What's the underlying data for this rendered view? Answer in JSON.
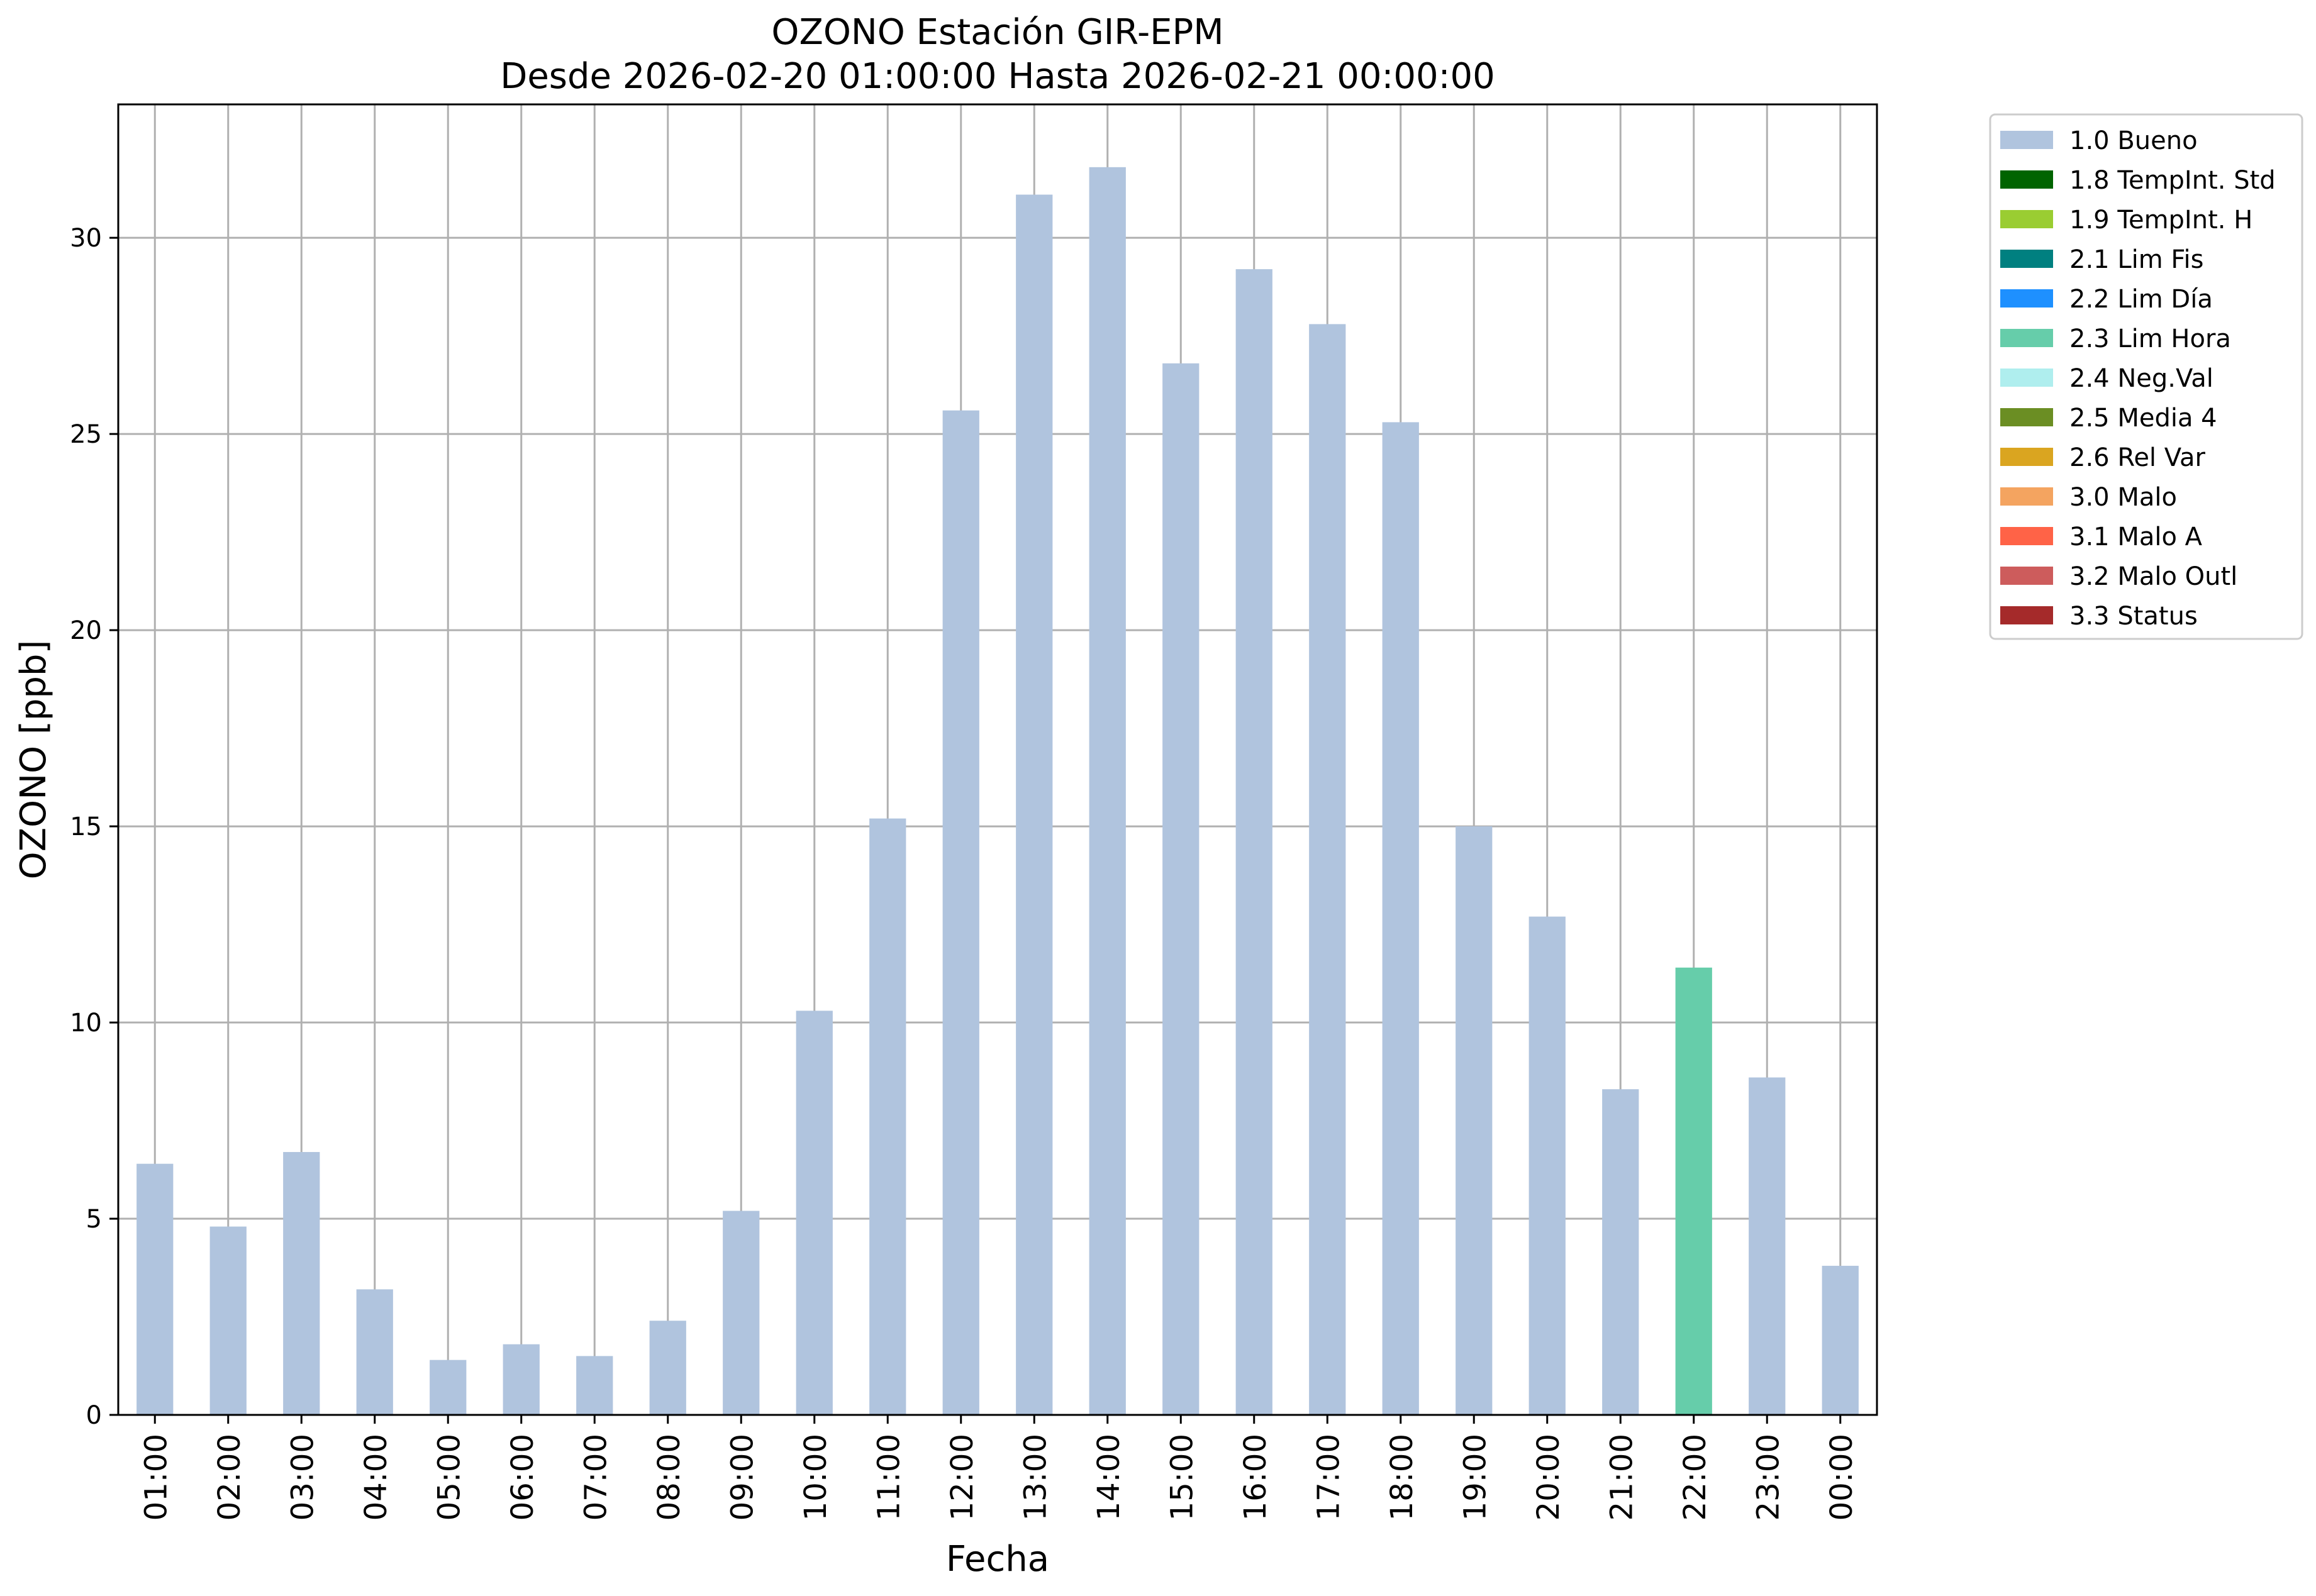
{
  "chart_data": {
    "type": "bar",
    "title": "OZONO Estación GIR-EPM",
    "subtitle": "Desde 2026-02-20 01:00:00 Hasta 2026-02-21 00:00:00",
    "xlabel": "Fecha",
    "ylabel": "OZONO [ppb]",
    "ylim": [
      0,
      33.4
    ],
    "y_ticks": [
      0,
      5,
      10,
      15,
      20,
      25,
      30
    ],
    "grid": true,
    "legend_position": "outside-top-right",
    "categories": [
      "01:00",
      "02:00",
      "03:00",
      "04:00",
      "05:00",
      "06:00",
      "07:00",
      "08:00",
      "09:00",
      "10:00",
      "11:00",
      "12:00",
      "13:00",
      "14:00",
      "15:00",
      "16:00",
      "17:00",
      "18:00",
      "19:00",
      "20:00",
      "21:00",
      "22:00",
      "23:00",
      "00:00"
    ],
    "values": [
      6.4,
      4.8,
      6.7,
      3.2,
      1.4,
      1.8,
      1.5,
      2.4,
      5.2,
      10.3,
      15.2,
      25.6,
      31.1,
      31.8,
      26.8,
      29.2,
      27.8,
      25.3,
      15.0,
      12.7,
      8.3,
      11.4,
      8.6,
      3.8
    ],
    "flags": [
      "1.0 Bueno",
      "1.0 Bueno",
      "1.0 Bueno",
      "1.0 Bueno",
      "1.0 Bueno",
      "1.0 Bueno",
      "1.0 Bueno",
      "1.0 Bueno",
      "1.0 Bueno",
      "1.0 Bueno",
      "1.0 Bueno",
      "1.0 Bueno",
      "1.0 Bueno",
      "1.0 Bueno",
      "1.0 Bueno",
      "1.0 Bueno",
      "1.0 Bueno",
      "1.0 Bueno",
      "1.0 Bueno",
      "1.0 Bueno",
      "1.0 Bueno",
      "2.3 Lim Hora",
      "1.0 Bueno",
      "1.0 Bueno"
    ],
    "legend": [
      {
        "label": "1.0 Bueno",
        "color": "#b0c4de"
      },
      {
        "label": "1.8 TempInt. Std",
        "color": "#006400"
      },
      {
        "label": "1.9 TempInt. H",
        "color": "#9acd32"
      },
      {
        "label": "2.1 Lim Fis",
        "color": "#008080"
      },
      {
        "label": "2.2 Lim Día",
        "color": "#1e90ff"
      },
      {
        "label": "2.3 Lim Hora",
        "color": "#66cdaa"
      },
      {
        "label": "2.4 Neg.Val",
        "color": "#afeeee"
      },
      {
        "label": "2.5 Media 4",
        "color": "#6b8e23"
      },
      {
        "label": "2.6 Rel Var",
        "color": "#daa520"
      },
      {
        "label": "3.0 Malo",
        "color": "#f4a460"
      },
      {
        "label": "3.1 Malo A",
        "color": "#ff6347"
      },
      {
        "label": "3.2 Malo Outl",
        "color": "#cd5c5c"
      },
      {
        "label": "3.3 Status",
        "color": "#a52a2a"
      }
    ]
  }
}
